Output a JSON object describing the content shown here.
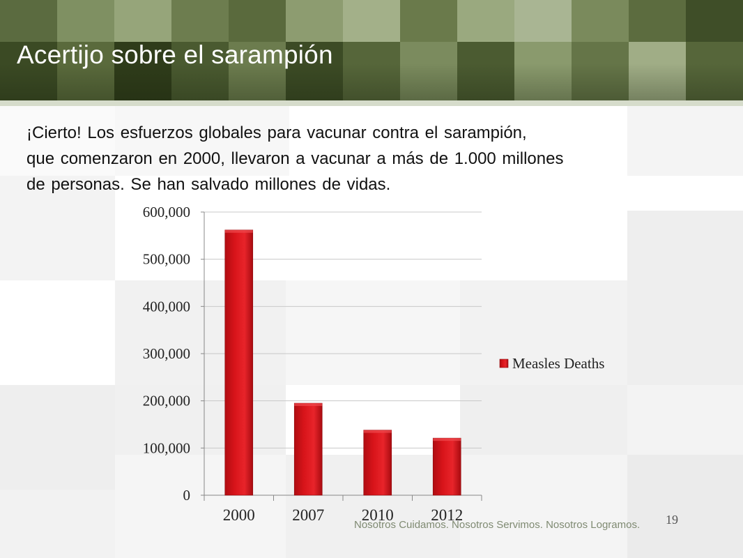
{
  "slide": {
    "title": "Acertijo sobre el sarampión",
    "body_lines": [
      "¡Cierto!  Los esfuerzos globales para vacunar contra el sarampión,",
      "que comenzaron en 2000, llevaron a vacunar a más de 1.000 millones",
      "de personas.  Se han salvado millones de vidas."
    ],
    "footer": "Nosotros Cuidamos. Nosotros Servimos. Nosotros Logramos.",
    "page_number": "19"
  },
  "colors": {
    "header_green": "#4d5e34",
    "bar_red": "#d8141a",
    "grid": "#c8c8c8"
  },
  "chart_data": {
    "type": "bar",
    "categories": [
      "2000",
      "2007",
      "2010",
      "2012"
    ],
    "series": [
      {
        "name": "Measles Deaths",
        "values": [
          562000,
          195000,
          138000,
          121000
        ]
      }
    ],
    "y_ticks": [
      "0",
      "100,000",
      "200,000",
      "300,000",
      "400,000",
      "500,000",
      "600,000"
    ],
    "ylim": [
      0,
      600000
    ],
    "title": "",
    "xlabel": "",
    "ylabel": "",
    "grid": true,
    "legend_position": "right"
  }
}
